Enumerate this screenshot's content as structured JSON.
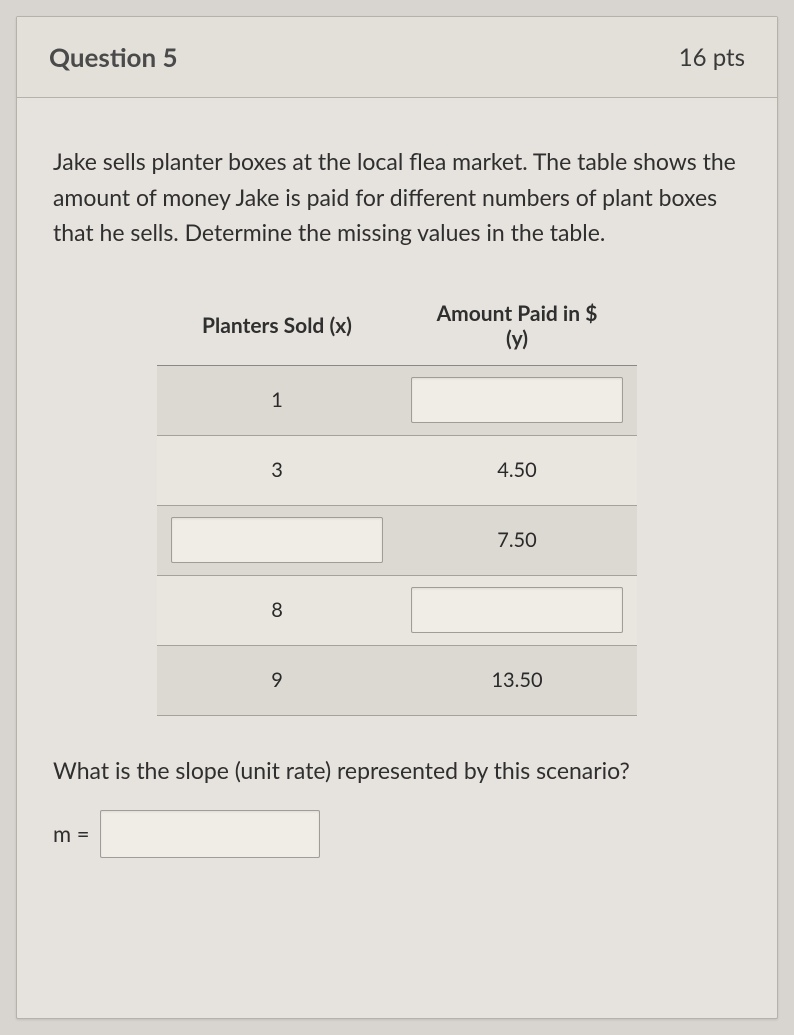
{
  "header": {
    "title": "Question 5",
    "points": "16 pts"
  },
  "prompt": "Jake sells planter boxes at the local flea market. The table shows the amount of money Jake is paid for different numbers of plant boxes that he sells. Determine the missing values in the table.",
  "table": {
    "col_x_header": "Planters Sold (x)",
    "col_y_header_line1": "Amount Paid in $",
    "col_y_header_line2": "(y)",
    "rows": [
      {
        "x": "1",
        "y": "",
        "x_input": false,
        "y_input": true,
        "shaded": true
      },
      {
        "x": "3",
        "y": "4.50",
        "x_input": false,
        "y_input": false,
        "shaded": false
      },
      {
        "x": "",
        "y": "7.50",
        "x_input": true,
        "y_input": false,
        "shaded": true
      },
      {
        "x": "8",
        "y": "",
        "x_input": false,
        "y_input": true,
        "shaded": false
      },
      {
        "x": "9",
        "y": "13.50",
        "x_input": false,
        "y_input": false,
        "shaded": true
      }
    ]
  },
  "slope": {
    "question": "What is the slope (unit rate) represented by this scenario?",
    "label": "m =",
    "value": ""
  },
  "styles": {
    "page_bg": "#d8d4cf",
    "card_bg": "#e6e2dd",
    "border": "#b5b1ab",
    "text": "#2f2f2f",
    "shaded_row": "#dcd8d2",
    "plain_row": "#e9e6e0",
    "input_bg": "#f0ede7",
    "input_border": "#a09c96"
  }
}
